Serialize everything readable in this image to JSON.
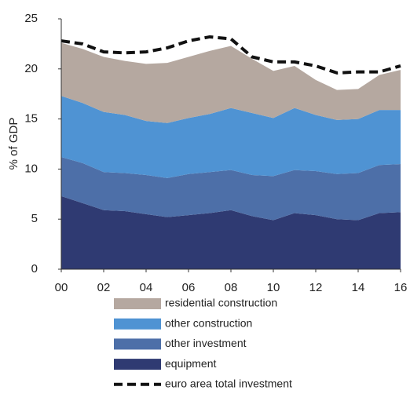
{
  "chart_data": {
    "type": "area",
    "stacked": true,
    "y_label": "% of GDP",
    "x": [
      0,
      1,
      2,
      3,
      4,
      5,
      6,
      7,
      8,
      9,
      10,
      11,
      12,
      13,
      14,
      15,
      16
    ],
    "xlim": [
      0,
      16
    ],
    "xticks": [
      {
        "value": 0,
        "label": "00"
      },
      {
        "value": 2,
        "label": "02"
      },
      {
        "value": 4,
        "label": "04"
      },
      {
        "value": 6,
        "label": "06"
      },
      {
        "value": 8,
        "label": "08"
      },
      10,
      12,
      14,
      16
    ],
    "ylim": [
      0,
      25
    ],
    "yticks": [
      0,
      5,
      10,
      15,
      20,
      25
    ],
    "series": [
      {
        "name": "equipment",
        "color": "#2f3a72",
        "values": [
          7.3,
          6.6,
          5.9,
          5.8,
          5.5,
          5.2,
          5.4,
          5.6,
          5.9,
          5.3,
          4.9,
          5.6,
          5.4,
          5.0,
          4.9,
          5.6,
          5.7
        ]
      },
      {
        "name": "other investment",
        "color": "#4d6fa8",
        "values": [
          3.9,
          4.0,
          3.8,
          3.8,
          3.9,
          3.9,
          4.1,
          4.1,
          4.0,
          4.1,
          4.4,
          4.3,
          4.4,
          4.5,
          4.7,
          4.8,
          4.8
        ]
      },
      {
        "name": "other construction",
        "color": "#4f93d3",
        "values": [
          6.1,
          6.0,
          6.0,
          5.8,
          5.4,
          5.5,
          5.6,
          5.8,
          6.2,
          6.2,
          5.8,
          6.2,
          5.6,
          5.4,
          5.4,
          5.5,
          5.4
        ]
      },
      {
        "name": "residential construction",
        "color": "#b5a8a0",
        "values": [
          5.3,
          5.4,
          5.5,
          5.4,
          5.7,
          6.0,
          6.1,
          6.3,
          6.2,
          5.4,
          4.7,
          4.2,
          3.5,
          3.0,
          3.0,
          3.5,
          4.0
        ]
      },
      {
        "name": "euro area total investment",
        "color": "#111111",
        "kind": "line",
        "dashed": true,
        "values": [
          22.8,
          22.5,
          21.7,
          21.6,
          21.7,
          22.1,
          22.8,
          23.2,
          23.0,
          21.2,
          20.7,
          20.7,
          20.3,
          19.6,
          19.7,
          19.7,
          20.3
        ]
      }
    ]
  }
}
